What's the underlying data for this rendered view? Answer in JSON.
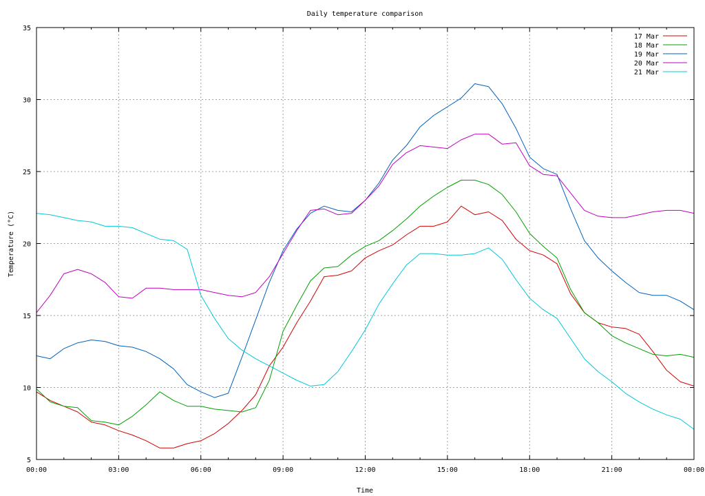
{
  "chart_data": {
    "type": "line",
    "title": "Daily temperature comparison",
    "xlabel": "Time",
    "ylabel": "Temperature (°C)",
    "xlim": [
      0,
      24
    ],
    "ylim": [
      5,
      35
    ],
    "x_ticks": [
      {
        "value": 0,
        "label": "00:00"
      },
      {
        "value": 3,
        "label": "03:00"
      },
      {
        "value": 6,
        "label": "06:00"
      },
      {
        "value": 9,
        "label": "09:00"
      },
      {
        "value": 12,
        "label": "12:00"
      },
      {
        "value": 15,
        "label": "15:00"
      },
      {
        "value": 18,
        "label": "18:00"
      },
      {
        "value": 21,
        "label": "21:00"
      },
      {
        "value": 24,
        "label": "00:00"
      }
    ],
    "y_ticks": [
      {
        "value": 5,
        "label": "5"
      },
      {
        "value": 10,
        "label": "10"
      },
      {
        "value": 15,
        "label": "15"
      },
      {
        "value": 20,
        "label": "20"
      },
      {
        "value": 25,
        "label": "25"
      },
      {
        "value": 30,
        "label": "30"
      },
      {
        "value": 35,
        "label": "35"
      }
    ],
    "grid": true,
    "legend_position": "top-right",
    "x": [
      0,
      0.5,
      1,
      1.5,
      2,
      2.5,
      3,
      3.5,
      4,
      4.5,
      5,
      5.5,
      6,
      6.5,
      7,
      7.5,
      8,
      8.5,
      9,
      9.5,
      10,
      10.5,
      11,
      11.5,
      12,
      12.5,
      13,
      13.5,
      14,
      14.5,
      15,
      15.5,
      16,
      16.5,
      17,
      17.5,
      18,
      18.5,
      19,
      19.5,
      20,
      20.5,
      21,
      21.5,
      22,
      22.5,
      23,
      23.5,
      24
    ],
    "series": [
      {
        "name": "17 Mar",
        "color": "#d40000",
        "values": [
          9.7,
          9.1,
          8.7,
          8.3,
          7.6,
          7.4,
          7.0,
          6.7,
          6.3,
          5.8,
          5.8,
          6.1,
          6.3,
          6.8,
          7.5,
          8.4,
          9.5,
          11.5,
          12.8,
          14.5,
          16.0,
          17.7,
          17.8,
          18.1,
          19.0,
          19.5,
          19.9,
          20.6,
          21.2,
          21.2,
          21.5,
          22.6,
          22.0,
          22.2,
          21.6,
          20.3,
          19.5,
          19.2,
          18.6,
          16.5,
          15.2,
          14.5,
          14.2,
          14.1,
          13.7,
          12.5,
          11.2,
          10.4,
          10.1
        ]
      },
      {
        "name": "18 Mar",
        "color": "#00a000",
        "values": [
          9.9,
          9.0,
          8.7,
          8.6,
          7.7,
          7.6,
          7.4,
          8.0,
          8.8,
          9.7,
          9.1,
          8.7,
          8.7,
          8.5,
          8.4,
          8.3,
          8.6,
          10.5,
          13.9,
          15.7,
          17.4,
          18.3,
          18.4,
          19.2,
          19.8,
          20.2,
          20.9,
          21.7,
          22.6,
          23.3,
          23.9,
          24.4,
          24.4,
          24.1,
          23.4,
          22.2,
          20.7,
          19.8,
          19.0,
          16.8,
          15.2,
          14.5,
          13.6,
          13.1,
          12.7,
          12.3,
          12.2,
          12.3,
          12.1
        ]
      },
      {
        "name": "19 Mar",
        "color": "#0060c0",
        "values": [
          12.2,
          12.0,
          12.7,
          13.1,
          13.3,
          13.2,
          12.9,
          12.8,
          12.5,
          12.0,
          11.3,
          10.2,
          9.7,
          9.3,
          9.6,
          12.1,
          14.7,
          17.3,
          19.5,
          21.0,
          22.1,
          22.6,
          22.3,
          22.2,
          23.0,
          24.2,
          25.8,
          26.8,
          28.1,
          28.9,
          29.5,
          30.1,
          31.1,
          30.9,
          29.7,
          28.0,
          26.0,
          25.2,
          24.8,
          22.4,
          20.2,
          19.0,
          18.1,
          17.3,
          16.6,
          16.4,
          16.4,
          16.0,
          15.4
        ]
      },
      {
        "name": "20 Mar",
        "color": "#c000c0",
        "values": [
          15.2,
          16.4,
          17.9,
          18.2,
          17.9,
          17.3,
          16.3,
          16.2,
          16.9,
          16.9,
          16.8,
          16.8,
          16.8,
          16.6,
          16.4,
          16.3,
          16.6,
          17.7,
          19.3,
          20.9,
          22.3,
          22.4,
          22.0,
          22.1,
          23.0,
          24.0,
          25.5,
          26.3,
          26.8,
          26.7,
          26.6,
          27.2,
          27.6,
          27.6,
          26.9,
          27.0,
          25.4,
          24.8,
          24.7,
          23.5,
          22.3,
          21.9,
          21.8,
          21.8,
          22.0,
          22.2,
          22.3,
          22.3,
          22.1
        ]
      },
      {
        "name": "21 Mar",
        "color": "#00c8d8",
        "values": [
          22.1,
          22.0,
          21.8,
          21.6,
          21.5,
          21.2,
          21.2,
          21.1,
          20.7,
          20.3,
          20.2,
          19.6,
          16.4,
          14.8,
          13.4,
          12.6,
          12.0,
          11.5,
          11.0,
          10.5,
          10.1,
          10.2,
          11.1,
          12.5,
          14.0,
          15.8,
          17.2,
          18.5,
          19.3,
          19.3,
          19.2,
          19.2,
          19.3,
          19.7,
          18.9,
          17.5,
          16.2,
          15.4,
          14.8,
          13.4,
          12.0,
          11.1,
          10.4,
          9.6,
          9.0,
          8.5,
          8.1,
          7.8,
          7.1
        ]
      }
    ]
  }
}
